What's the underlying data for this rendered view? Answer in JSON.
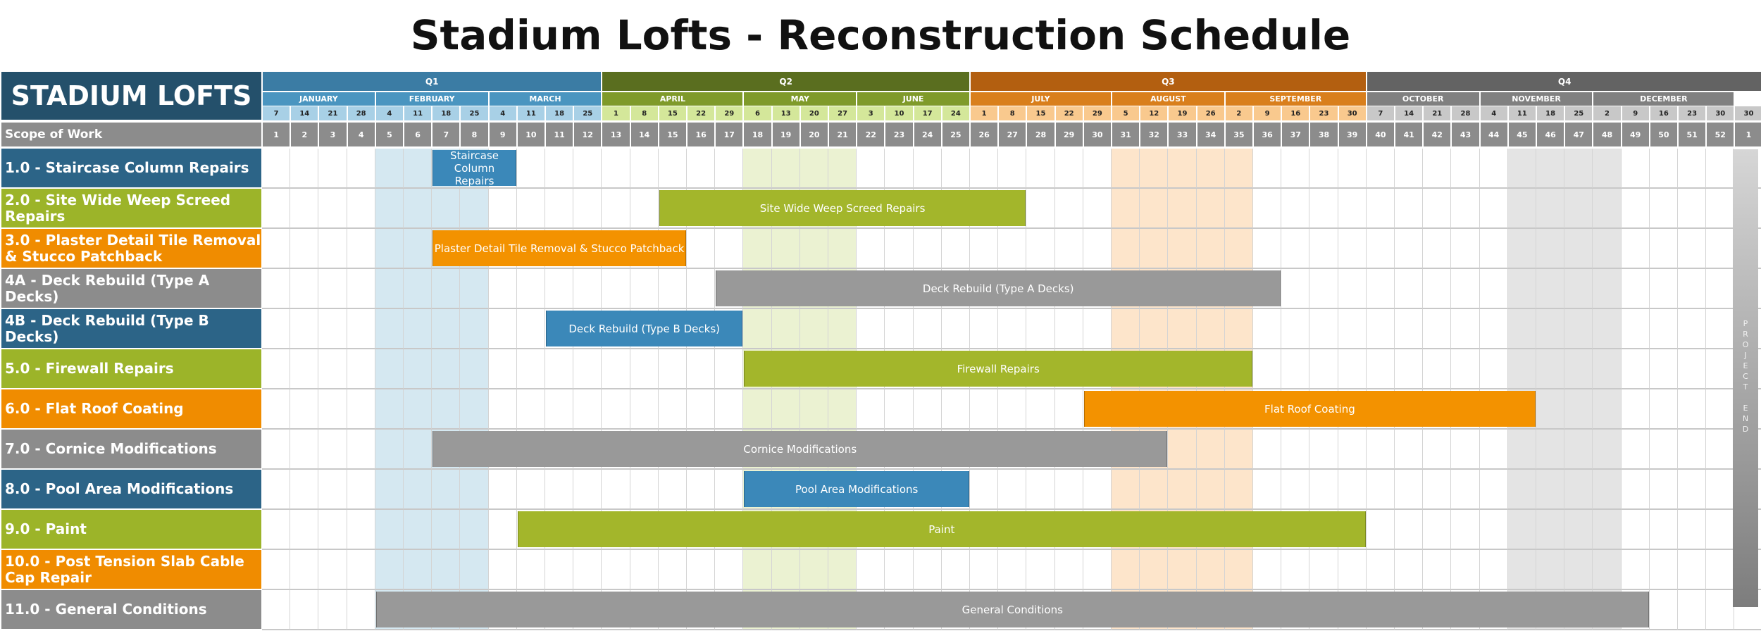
{
  "title": "Stadium Lofts - Reconstruction Schedule",
  "brand": "STADIUM LOFTS",
  "scope_label": "Scope of Work",
  "project_end_label": "P\nR\nO\nJ\nE\nC\nT\n \nE\nN\nD",
  "colors": {
    "q1": "#3b7ca4",
    "q2": "#5a6e1f",
    "q3": "#b35f10",
    "q4": "#636363",
    "m_q1": "#4a95c0",
    "m_q2": "#7f9a2a",
    "m_q3": "#d97f1c",
    "m_q4": "#808080",
    "d_q1": "#a8d0e6",
    "d_q2": "#d4e79a",
    "d_q3": "#f9c98e",
    "d_q4": "#c8c8c8",
    "blue": "#2c6487",
    "green": "#9cb429",
    "orange": "#f08c00",
    "gray": "#8c8c8c",
    "barblue": "#3b88b9",
    "bargreen": "#a3b62b",
    "barorange": "#f39200",
    "bargray": "#999999",
    "hl_blue": "#d5e8f1",
    "hl_green": "#ebf2d2",
    "hl_orange": "#fde5cb",
    "hl_gray": "#e4e4e4"
  },
  "chart_data": {
    "type": "gantt",
    "title": "Stadium Lofts - Reconstruction Schedule",
    "quarters": [
      "Q1",
      "Q2",
      "Q3",
      "Q4"
    ],
    "months": [
      {
        "name": "JANUARY",
        "quarter": 0,
        "dates": [
          "7",
          "14",
          "21",
          "28"
        ]
      },
      {
        "name": "FEBRUARY",
        "quarter": 0,
        "dates": [
          "4",
          "11",
          "18",
          "25"
        ]
      },
      {
        "name": "MARCH",
        "quarter": 0,
        "dates": [
          "4",
          "11",
          "18",
          "25"
        ]
      },
      {
        "name": "APRIL",
        "quarter": 1,
        "dates": [
          "1",
          "8",
          "15",
          "22",
          "29"
        ]
      },
      {
        "name": "MAY",
        "quarter": 1,
        "dates": [
          "6",
          "13",
          "20",
          "27"
        ]
      },
      {
        "name": "JUNE",
        "quarter": 1,
        "dates": [
          "3",
          "10",
          "17",
          "24"
        ]
      },
      {
        "name": "JULY",
        "quarter": 2,
        "dates": [
          "1",
          "8",
          "15",
          "22",
          "29"
        ]
      },
      {
        "name": "AUGUST",
        "quarter": 2,
        "dates": [
          "5",
          "12",
          "19",
          "26"
        ]
      },
      {
        "name": "SEPTEMBER",
        "quarter": 2,
        "dates": [
          "2",
          "9",
          "16",
          "23",
          "30"
        ]
      },
      {
        "name": "OCTOBER",
        "quarter": 3,
        "dates": [
          "7",
          "14",
          "21",
          "28"
        ]
      },
      {
        "name": "NOVEMBER",
        "quarter": 3,
        "dates": [
          "4",
          "11",
          "18",
          "25"
        ]
      },
      {
        "name": "DECEMBER",
        "quarter": 3,
        "dates": [
          "2",
          "9",
          "16",
          "23",
          "30"
        ]
      }
    ],
    "week_numbers": [
      "1",
      "2",
      "3",
      "4",
      "5",
      "6",
      "7",
      "8",
      "9",
      "10",
      "11",
      "12",
      "13",
      "14",
      "15",
      "16",
      "17",
      "18",
      "19",
      "20",
      "21",
      "22",
      "23",
      "24",
      "25",
      "26",
      "27",
      "28",
      "29",
      "30",
      "31",
      "32",
      "33",
      "34",
      "35",
      "36",
      "37",
      "38",
      "39",
      "40",
      "41",
      "42",
      "43",
      "44",
      "45",
      "46",
      "47",
      "48",
      "49",
      "50",
      "51",
      "52",
      "1"
    ],
    "highlighted_weeks": [
      {
        "from": 5,
        "to": 8,
        "quarter": 0
      },
      {
        "from": 18,
        "to": 21,
        "quarter": 1
      },
      {
        "from": 31,
        "to": 35,
        "quarter": 2
      },
      {
        "from": 45,
        "to": 48,
        "quarter": 3
      }
    ],
    "tasks": [
      {
        "label": "1.0 - Staircase Column Repairs",
        "color": "blue",
        "bar_label": "Staircase Column Repairs",
        "start": 7,
        "end": 9
      },
      {
        "label": "2.0 - Site Wide Weep Screed Repairs",
        "color": "green",
        "bar_label": "Site Wide Weep Screed Repairs",
        "start": 15,
        "end": 27
      },
      {
        "label": "3.0 - Plaster Detail Tile Removal & Stucco Patchback",
        "color": "orange",
        "bar_label": "Plaster Detail Tile Removal & Stucco Patchback",
        "start": 7,
        "end": 15
      },
      {
        "label": "4A - Deck Rebuild (Type A Decks)",
        "color": "gray",
        "bar_label": "Deck Rebuild (Type A Decks)",
        "start": 17,
        "end": 36
      },
      {
        "label": "4B - Deck Rebuild (Type B Decks)",
        "color": "blue",
        "bar_label": "Deck Rebuild (Type B Decks)",
        "start": 11,
        "end": 17
      },
      {
        "label": "5.0 - Firewall Repairs",
        "color": "green",
        "bar_label": "Firewall Repairs",
        "start": 18,
        "end": 35
      },
      {
        "label": "6.0 - Flat Roof Coating",
        "color": "orange",
        "bar_label": "Flat Roof Coating",
        "start": 30,
        "end": 45
      },
      {
        "label": "7.0 - Cornice Modifications",
        "color": "gray",
        "bar_label": "Cornice Modifications",
        "start": 7,
        "end": 32
      },
      {
        "label": "8.0 - Pool Area Modifications",
        "color": "blue",
        "bar_label": "Pool Area Modifications",
        "start": 18,
        "end": 25
      },
      {
        "label": "9.0 - Paint",
        "color": "green",
        "bar_label": "Paint",
        "start": 10,
        "end": 39
      },
      {
        "label": "10.0 - Post Tension Slab Cable Cap Repair",
        "color": "orange",
        "bar_label": "",
        "start": null,
        "end": null
      },
      {
        "label": "11.0 - General Conditions",
        "color": "gray",
        "bar_label": "General Conditions",
        "start": 5,
        "end": 49
      }
    ]
  }
}
